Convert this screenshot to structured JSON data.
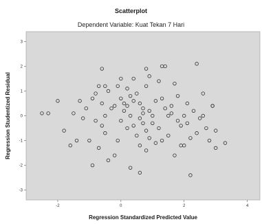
{
  "chart_data": {
    "type": "scatter",
    "title": "Scatterplot",
    "subtitle": "Dependent Variable: Kuat Tekan 7 Hari",
    "xlabel": "Regression Standardized Predicted Value",
    "ylabel": "Regression Studentized Residual",
    "xlim": [
      -3,
      4.4
    ],
    "ylim": [
      -3.4,
      3.4
    ],
    "xticks": [
      -2,
      0,
      2,
      4
    ],
    "yticks": [
      3,
      2,
      1,
      0,
      -1,
      -2,
      -3
    ],
    "grid": false,
    "legend": "none",
    "colors": {
      "plot_background": "#d9d9d9",
      "marker_stroke": "#2f2f2f"
    },
    "points": [
      [
        -2.5,
        0.1
      ],
      [
        -2.3,
        0.1
      ],
      [
        -2.0,
        0.6
      ],
      [
        -1.8,
        -0.6
      ],
      [
        -1.6,
        -1.2
      ],
      [
        -1.5,
        0.1
      ],
      [
        -1.4,
        -1.0
      ],
      [
        -1.3,
        0.6
      ],
      [
        -1.2,
        -0.1
      ],
      [
        -1.0,
        -1.0
      ],
      [
        -0.9,
        0.7
      ],
      [
        -0.8,
        -0.2
      ],
      [
        -0.7,
        1.2
      ],
      [
        -0.7,
        -1.3
      ],
      [
        -0.6,
        1.9
      ],
      [
        -0.6,
        0.5
      ],
      [
        -0.5,
        -0.7
      ],
      [
        -0.5,
        0.0
      ],
      [
        -0.4,
        1.0
      ],
      [
        -0.4,
        -1.8
      ],
      [
        -0.3,
        0.3
      ],
      [
        -0.2,
        0.4
      ],
      [
        -0.1,
        -1.0
      ],
      [
        0.0,
        1.5
      ],
      [
        0.0,
        0.7
      ],
      [
        0.1,
        0.5
      ],
      [
        0.1,
        0.2
      ],
      [
        0.2,
        -0.5
      ],
      [
        0.2,
        0.4
      ],
      [
        0.3,
        0.0
      ],
      [
        0.3,
        -2.1
      ],
      [
        0.4,
        1.5
      ],
      [
        0.4,
        -0.4
      ],
      [
        0.5,
        0.9
      ],
      [
        0.6,
        0.5
      ],
      [
        0.6,
        -1.2
      ],
      [
        0.7,
        0.1
      ],
      [
        0.7,
        -0.3
      ],
      [
        0.8,
        1.2
      ],
      [
        0.8,
        -0.6
      ],
      [
        0.9,
        0.2
      ],
      [
        0.9,
        -0.9
      ],
      [
        1.0,
        -0.3
      ],
      [
        1.0,
        0.0
      ],
      [
        1.1,
        -1.1
      ],
      [
        1.2,
        1.4
      ],
      [
        1.2,
        -0.5
      ],
      [
        1.3,
        0.7
      ],
      [
        1.4,
        0.3
      ],
      [
        1.5,
        0.0
      ],
      [
        1.5,
        -0.8
      ],
      [
        1.6,
        0.1
      ],
      [
        1.7,
        1.3
      ],
      [
        1.7,
        -1.6
      ],
      [
        1.8,
        0.8
      ],
      [
        1.9,
        -0.4
      ],
      [
        2.0,
        0.0
      ],
      [
        2.0,
        -1.2
      ],
      [
        2.1,
        0.5
      ],
      [
        2.2,
        -0.9
      ],
      [
        2.2,
        -2.4
      ],
      [
        2.3,
        0.2
      ],
      [
        2.4,
        -0.7
      ],
      [
        2.4,
        2.1
      ],
      [
        2.5,
        -0.1
      ],
      [
        2.6,
        0.0
      ],
      [
        2.7,
        -0.5
      ],
      [
        2.8,
        -1.0
      ],
      [
        2.9,
        0.4
      ],
      [
        3.0,
        -0.6
      ],
      [
        0.5,
        -0.8
      ],
      [
        0.0,
        -0.2
      ],
      [
        -0.2,
        -1.6
      ],
      [
        1.3,
        -1.0
      ],
      [
        -0.8,
        0.9
      ],
      [
        0.9,
        1.6
      ],
      [
        1.4,
        2.0
      ],
      [
        -0.1,
        1.2
      ],
      [
        0.4,
        0.6
      ],
      [
        1.1,
        0.6
      ],
      [
        0.6,
        -0.1
      ],
      [
        1.8,
        -0.2
      ],
      [
        2.1,
        -0.3
      ],
      [
        -0.6,
        -0.4
      ],
      [
        0.2,
        1.1
      ],
      [
        1.6,
        0.4
      ],
      [
        0.8,
        -1.4
      ],
      [
        0.3,
        0.8
      ],
      [
        -1.1,
        0.3
      ],
      [
        2.6,
        0.9
      ],
      [
        3.3,
        -1.1
      ],
      [
        1.3,
        2.0
      ],
      [
        0.6,
        -2.3
      ],
      [
        0.8,
        1.9
      ],
      [
        0.7,
        0.3
      ],
      [
        -0.5,
        1.2
      ],
      [
        -0.9,
        -2.0
      ],
      [
        1.9,
        -1.2
      ],
      [
        2.9,
        0.4
      ],
      [
        3.0,
        -1.3
      ]
    ]
  }
}
